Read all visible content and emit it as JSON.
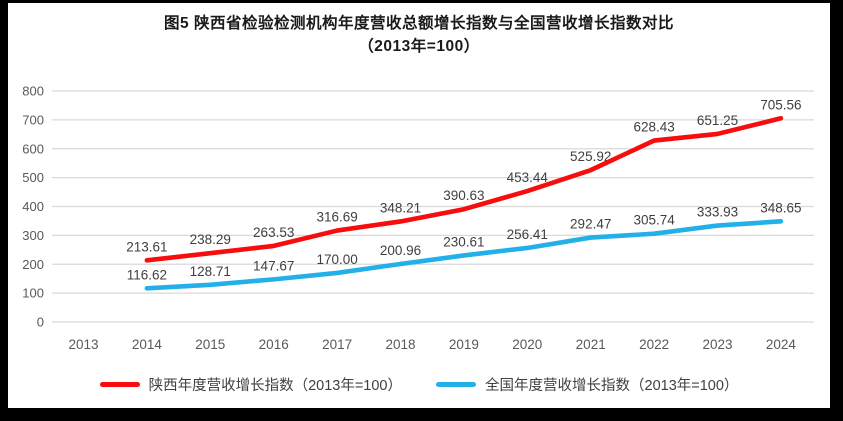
{
  "title": {
    "line1": "图5  陕西省检验检测机构年度营收总额增长指数与全国营收增长指数对比",
    "line2": "（2013年=100）"
  },
  "chart_data": {
    "type": "line",
    "categories": [
      "2013",
      "2014",
      "2015",
      "2016",
      "2017",
      "2018",
      "2019",
      "2020",
      "2021",
      "2022",
      "2023",
      "2024"
    ],
    "yticks": [
      "0",
      "100",
      "200",
      "300",
      "400",
      "500",
      "600",
      "700",
      "800"
    ],
    "ylim": [
      0,
      800
    ],
    "ytick_step": 100,
    "grid": true,
    "legend_position": "bottom",
    "xlabel": "",
    "ylabel": "",
    "series": [
      {
        "name": "陕西年度营收增长指数（2013年=100）",
        "color": "#f70d0d",
        "start_category": "2014",
        "values": [
          213.61,
          238.29,
          263.53,
          316.69,
          348.21,
          390.63,
          453.44,
          525.92,
          628.43,
          651.25,
          705.56
        ],
        "labels": [
          "213.61",
          "238.29",
          "263.53",
          "316.69",
          "348.21",
          "390.63",
          "453.44",
          "525.92",
          "628.43",
          "651.25",
          "705.56"
        ]
      },
      {
        "name": "全国年度营收增长指数（2013年=100）",
        "color": "#23b0e8",
        "start_category": "2014",
        "values": [
          116.62,
          128.71,
          147.67,
          170.0,
          200.96,
          230.61,
          256.41,
          292.47,
          305.74,
          333.93,
          348.65
        ],
        "labels": [
          "116.62",
          "128.71",
          "147.67",
          "170.00",
          "200.96",
          "230.61",
          "256.41",
          "292.47",
          "305.74",
          "333.93",
          "348.65"
        ]
      }
    ],
    "colors": {
      "gridline": "#d9d9d9",
      "axis_text": "#595959",
      "data_label": "#3f3f3f"
    }
  }
}
